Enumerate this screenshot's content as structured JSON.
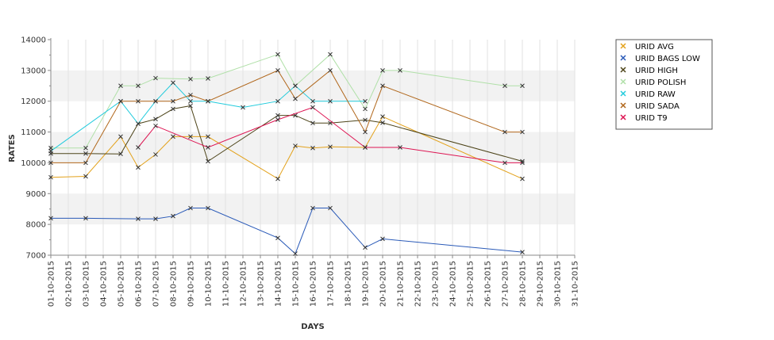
{
  "chart_data": {
    "type": "line",
    "xlabel": "DAYS",
    "ylabel": "RATES",
    "ylim": [
      7000,
      14000
    ],
    "yticks": [
      "7000",
      "8000",
      "9000",
      "10000",
      "11000",
      "12000",
      "13000",
      "14000"
    ],
    "categories": [
      "01-10-2015",
      "02-10-2015",
      "03-10-2015",
      "04-10-2015",
      "05-10-2015",
      "06-10-2015",
      "07-10-2015",
      "08-10-2015",
      "09-10-2015",
      "10-10-2015",
      "11-10-2015",
      "12-10-2015",
      "13-10-2015",
      "14-10-2015",
      "15-10-2015",
      "16-10-2015",
      "17-10-2015",
      "18-10-2015",
      "19-10-2015",
      "20-10-2015",
      "21-10-2015",
      "22-10-2015",
      "23-10-2015",
      "24-10-2015",
      "25-10-2015",
      "26-10-2015",
      "27-10-2015",
      "28-10-2015",
      "29-10-2015",
      "30-10-2015",
      "31-10-2015"
    ],
    "grid": "alternating horizontal bands",
    "legend_position": "right",
    "series": [
      {
        "name": "URID AVG",
        "color": "#e3a21c",
        "points": [
          [
            1,
            9530
          ],
          [
            3,
            9560
          ],
          [
            5,
            10850
          ],
          [
            6,
            9850
          ],
          [
            7,
            10270
          ],
          [
            8,
            10850
          ],
          [
            9,
            10850
          ],
          [
            10,
            10850
          ],
          [
            14,
            9480
          ],
          [
            15,
            10550
          ],
          [
            16,
            10480
          ],
          [
            17,
            10520
          ],
          [
            19,
            10500
          ],
          [
            20,
            11500
          ],
          [
            28,
            9480
          ]
        ]
      },
      {
        "name": "URID BAGS LOW",
        "color": "#2a5ab8",
        "points": [
          [
            1,
            8200
          ],
          [
            3,
            8200
          ],
          [
            6,
            8180
          ],
          [
            7,
            8180
          ],
          [
            8,
            8270
          ],
          [
            9,
            8530
          ],
          [
            10,
            8530
          ],
          [
            14,
            7560
          ],
          [
            15,
            7050
          ],
          [
            16,
            8530
          ],
          [
            17,
            8530
          ],
          [
            19,
            7250
          ],
          [
            20,
            7530
          ],
          [
            28,
            7100
          ]
        ]
      },
      {
        "name": "URID HIGH",
        "color": "#4d4419",
        "points": [
          [
            1,
            10300
          ],
          [
            3,
            10300
          ],
          [
            5,
            10290
          ],
          [
            6,
            11270
          ],
          [
            7,
            11420
          ],
          [
            8,
            11750
          ],
          [
            9,
            11850
          ],
          [
            10,
            10050
          ],
          [
            14,
            11540
          ],
          [
            15,
            11540
          ],
          [
            16,
            11290
          ],
          [
            17,
            11290
          ],
          [
            19,
            11390
          ],
          [
            20,
            11300
          ],
          [
            28,
            10050
          ]
        ]
      },
      {
        "name": "URID POLISH",
        "color": "#b0e0a8",
        "points": [
          [
            1,
            10480
          ],
          [
            3,
            10480
          ],
          [
            5,
            12500
          ],
          [
            6,
            12500
          ],
          [
            7,
            12750
          ],
          [
            9,
            12720
          ],
          [
            10,
            12740
          ],
          [
            14,
            13520
          ],
          [
            15,
            12500
          ],
          [
            17,
            13520
          ],
          [
            19,
            11750
          ],
          [
            20,
            13000
          ],
          [
            21,
            13000
          ],
          [
            27,
            12500
          ],
          [
            28,
            12500
          ]
        ]
      },
      {
        "name": "URID RAW",
        "color": "#22cbdc",
        "points": [
          [
            1,
            10380
          ],
          [
            5,
            12000
          ],
          [
            6,
            11270
          ],
          [
            7,
            12000
          ],
          [
            8,
            12600
          ],
          [
            9,
            12000
          ],
          [
            10,
            12000
          ],
          [
            12,
            11800
          ],
          [
            14,
            12000
          ],
          [
            15,
            12500
          ],
          [
            16,
            12000
          ],
          [
            17,
            12000
          ],
          [
            19,
            12000
          ]
        ]
      },
      {
        "name": "URID SADA",
        "color": "#b0661a",
        "points": [
          [
            1,
            10000
          ],
          [
            3,
            10000
          ],
          [
            5,
            12000
          ],
          [
            6,
            12000
          ],
          [
            7,
            12000
          ],
          [
            8,
            12000
          ],
          [
            9,
            12200
          ],
          [
            10,
            12000
          ],
          [
            14,
            13000
          ],
          [
            15,
            12080
          ],
          [
            17,
            13000
          ],
          [
            19,
            11000
          ],
          [
            20,
            12500
          ],
          [
            27,
            11000
          ],
          [
            28,
            11000
          ]
        ]
      },
      {
        "name": "URID T9",
        "color": "#dd1452",
        "points": [
          [
            6,
            10500
          ],
          [
            7,
            11200
          ],
          [
            10,
            10500
          ],
          [
            14,
            11400
          ],
          [
            16,
            11800
          ],
          [
            19,
            10500
          ],
          [
            21,
            10500
          ],
          [
            27,
            10000
          ],
          [
            28,
            10000
          ]
        ]
      }
    ]
  }
}
